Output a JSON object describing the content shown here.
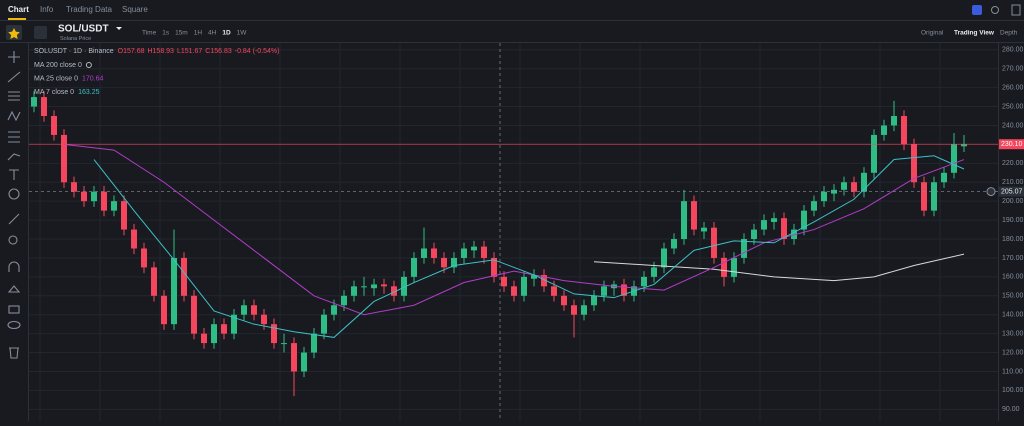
{
  "nav": {
    "items": [
      "Chart",
      "Info",
      "Trading Data",
      "Square"
    ]
  },
  "toolbar": {
    "symbol": "SOL/USDT",
    "subtitle": "Solana Price",
    "intervals": [
      "Time",
      "1s",
      "15m",
      "1H",
      "4H",
      "1D",
      "1W"
    ],
    "views": [
      "Original",
      "Trading View",
      "Depth"
    ]
  },
  "legend": {
    "title": "SOLUSDT · 1D · Binance",
    "ohlc": [
      "O157.68",
      "H158.93",
      "L151.67",
      "C156.83",
      "-0.84 (-0.54%)"
    ]
  },
  "chart_data": {
    "type": "candlestick",
    "ohlc": [
      [
        250,
        258,
        247,
        255
      ],
      [
        255,
        258,
        242,
        245
      ],
      [
        245,
        248,
        232,
        235
      ],
      [
        235,
        238,
        207,
        210
      ],
      [
        210,
        213,
        202,
        205
      ],
      [
        205,
        208,
        197,
        200
      ],
      [
        200,
        208,
        197,
        205
      ],
      [
        205,
        208,
        192,
        195
      ],
      [
        195,
        203,
        192,
        200
      ],
      [
        200,
        203,
        182,
        185
      ],
      [
        185,
        188,
        172,
        175
      ],
      [
        175,
        178,
        162,
        165
      ],
      [
        165,
        168,
        147,
        150
      ],
      [
        150,
        153,
        132,
        135
      ],
      [
        135,
        185,
        132,
        170
      ],
      [
        170,
        173,
        147,
        150
      ],
      [
        150,
        153,
        127,
        130
      ],
      [
        130,
        133,
        122,
        125
      ],
      [
        125,
        138,
        122,
        135
      ],
      [
        135,
        138,
        127,
        130
      ],
      [
        130,
        143,
        127,
        140
      ],
      [
        140,
        148,
        137,
        145
      ],
      [
        145,
        148,
        137,
        140
      ],
      [
        140,
        143,
        132,
        135
      ],
      [
        135,
        138,
        122,
        125
      ],
      [
        125,
        130,
        120,
        125
      ],
      [
        125,
        128,
        97,
        110
      ],
      [
        110,
        123,
        107,
        120
      ],
      [
        120,
        133,
        117,
        130
      ],
      [
        130,
        143,
        127,
        140
      ],
      [
        140,
        148,
        137,
        145
      ],
      [
        145,
        153,
        142,
        150
      ],
      [
        150,
        158,
        147,
        155
      ],
      [
        155,
        160,
        150,
        155
      ],
      [
        154,
        159,
        150,
        156
      ],
      [
        156,
        159,
        151,
        155
      ],
      [
        155,
        158,
        147,
        150
      ],
      [
        150,
        163,
        147,
        160
      ],
      [
        160,
        173,
        157,
        170
      ],
      [
        170,
        186,
        167,
        175
      ],
      [
        175,
        178,
        167,
        170
      ],
      [
        170,
        173,
        162,
        165
      ],
      [
        165,
        173,
        162,
        170
      ],
      [
        170,
        178,
        167,
        175
      ],
      [
        174,
        179,
        170,
        176
      ],
      [
        176,
        179,
        167,
        170
      ],
      [
        170,
        173,
        157,
        160
      ],
      [
        160,
        163,
        152,
        155
      ],
      [
        155,
        158,
        147,
        150
      ],
      [
        150,
        163,
        147,
        160
      ],
      [
        159,
        164,
        155,
        161
      ],
      [
        161,
        164,
        152,
        155
      ],
      [
        155,
        158,
        147,
        150
      ],
      [
        150,
        153,
        142,
        145
      ],
      [
        145,
        148,
        128,
        140
      ],
      [
        140,
        148,
        137,
        145
      ],
      [
        145,
        153,
        142,
        150
      ],
      [
        150,
        158,
        147,
        155
      ],
      [
        154,
        158,
        150,
        156
      ],
      [
        156,
        159,
        147,
        150
      ],
      [
        150,
        158,
        147,
        155
      ],
      [
        155,
        163,
        152,
        160
      ],
      [
        160,
        168,
        157,
        165
      ],
      [
        165,
        178,
        162,
        175
      ],
      [
        175,
        183,
        172,
        180
      ],
      [
        180,
        206,
        177,
        200
      ],
      [
        200,
        203,
        182,
        185
      ],
      [
        184,
        189,
        180,
        186
      ],
      [
        186,
        189,
        167,
        170
      ],
      [
        170,
        173,
        155,
        160
      ],
      [
        160,
        173,
        157,
        170
      ],
      [
        170,
        183,
        167,
        180
      ],
      [
        180,
        188,
        177,
        185
      ],
      [
        185,
        193,
        182,
        190
      ],
      [
        189,
        194,
        185,
        191
      ],
      [
        191,
        194,
        177,
        180
      ],
      [
        180,
        188,
        177,
        185
      ],
      [
        185,
        198,
        182,
        195
      ],
      [
        195,
        203,
        192,
        200
      ],
      [
        200,
        208,
        197,
        205
      ],
      [
        204,
        209,
        200,
        206
      ],
      [
        206,
        213,
        203,
        210
      ],
      [
        210,
        213,
        202,
        205
      ],
      [
        205,
        218,
        202,
        215
      ],
      [
        215,
        238,
        212,
        235
      ],
      [
        235,
        243,
        232,
        240
      ],
      [
        240,
        253,
        237,
        245
      ],
      [
        245,
        248,
        227,
        230
      ],
      [
        230,
        233,
        207,
        210
      ],
      [
        210,
        213,
        192,
        195
      ],
      [
        195,
        213,
        192,
        210
      ],
      [
        210,
        218,
        207,
        215
      ],
      [
        215,
        236,
        212,
        230
      ],
      [
        229,
        235,
        226,
        230
      ]
    ],
    "series": [
      {
        "name": "MA 200 close 0",
        "color": "#d9d9d9",
        "x": [
          56,
          62,
          68,
          74,
          80,
          84,
          88,
          93
        ],
        "values": [
          168,
          166,
          164,
          160,
          158,
          160,
          166,
          172
        ]
      },
      {
        "name": "MA 25 close 0",
        "readout": 170.64,
        "color": "#b13ec6",
        "x": [
          3,
          8,
          13,
          18,
          23,
          28,
          33,
          38,
          43,
          48,
          53,
          58,
          63,
          68,
          73,
          78,
          83,
          88,
          93
        ],
        "values": [
          230,
          227,
          210,
          190,
          170,
          150,
          140,
          145,
          157,
          163,
          158,
          155,
          153,
          165,
          178,
          185,
          196,
          212,
          222
        ]
      },
      {
        "name": "MA 7 close 0",
        "readout": 163.25,
        "color": "#3dc1c8",
        "x": [
          6,
          10,
          14,
          18,
          22,
          26,
          30,
          34,
          38,
          42,
          46,
          50,
          54,
          58,
          62,
          66,
          70,
          74,
          78,
          82,
          86,
          90,
          93
        ],
        "values": [
          222,
          195,
          169,
          142,
          135,
          131,
          128,
          147,
          157,
          166,
          169,
          161,
          151,
          149,
          156,
          174,
          179,
          178,
          189,
          201,
          222,
          224,
          217
        ]
      }
    ],
    "up_color": "#2ebd85",
    "down_color": "#f6465d",
    "ylim": [
      87,
      282
    ],
    "yticks": [
      {
        "value": 90,
        "label": "90.00"
      },
      {
        "value": 100,
        "label": "100.00"
      },
      {
        "value": 110,
        "label": "110.00"
      },
      {
        "value": 120,
        "label": "120.00"
      },
      {
        "value": 130,
        "label": "130.00"
      },
      {
        "value": 140,
        "label": "140.00"
      },
      {
        "value": 150,
        "label": "150.00"
      },
      {
        "value": 160,
        "label": "160.00"
      },
      {
        "value": 170,
        "label": "170.00"
      },
      {
        "value": 180,
        "label": "180.00"
      },
      {
        "value": 190,
        "label": "190.00"
      },
      {
        "value": 200,
        "label": "200.00"
      },
      {
        "value": 210,
        "label": "210.00"
      },
      {
        "value": 220,
        "label": "220.00"
      },
      {
        "value": 230,
        "label": "230.00"
      },
      {
        "value": 240,
        "label": "240.00"
      },
      {
        "value": 250,
        "label": "250.00"
      },
      {
        "value": 260,
        "label": "260.00"
      },
      {
        "value": 270,
        "label": "270.00"
      },
      {
        "value": 280,
        "label": "280.00"
      }
    ],
    "last_price": {
      "value": 230.1,
      "label": "230.10"
    },
    "crosshair": {
      "value": 205.07,
      "index": 46.6
    },
    "grid": true
  }
}
